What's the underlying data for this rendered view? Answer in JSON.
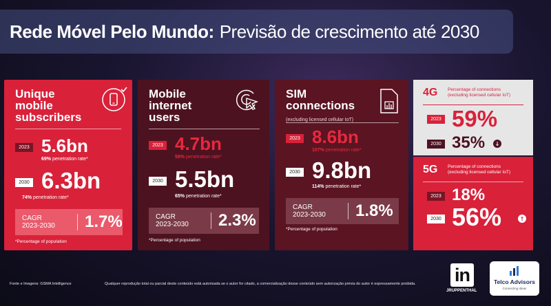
{
  "title": {
    "bold": "Rede Móvel Pelo Mundo:",
    "regular": "Previsão de crescimento até 2030"
  },
  "cards": [
    {
      "head": [
        "Unique",
        "mobile",
        "subscribers"
      ],
      "icon": "smartphone-check-icon",
      "y1": "2023",
      "v1": "5.6bn",
      "r1b": "69%",
      "r1": "penetration rate*",
      "y2": "2030",
      "v2": "6.3bn",
      "r2b": "74%",
      "r2": "penetration rate*",
      "cagr_label1": "CAGR",
      "cagr_label2": "2023-2030",
      "cagr": "1.7%",
      "footnote": "*Percentage of population"
    },
    {
      "head": [
        "Mobile",
        "internet",
        "users"
      ],
      "icon": "cursor-click-icon",
      "y1": "2023",
      "v1": "4.7bn",
      "r1b": "58%",
      "r1": "penetration rate*",
      "y2": "2030",
      "v2": "5.5bn",
      "r2b": "65%",
      "r2": "penetration rate*",
      "cagr_label1": "CAGR",
      "cagr_label2": "2023-2030",
      "cagr": "2.3%",
      "footnote": "*Percentage of population"
    },
    {
      "head": [
        "SIM",
        "connections"
      ],
      "sub": "(excluding licensed cellular IoT)",
      "icon": "sim-card-icon",
      "y1": "2023",
      "v1": "8.6bn",
      "r1b": "107%",
      "r1": "penetration rate*",
      "y2": "2030",
      "v2": "9.8bn",
      "r2b": "114%",
      "r2": "penetration rate*",
      "cagr_label1": "CAGR",
      "cagr_label2": "2023-2030",
      "cagr": "1.8%",
      "footnote": "*Percentage of population"
    }
  ],
  "g4": {
    "label": "4G",
    "sub1": "Percentage of connections",
    "sub2": "(excluding licensed cellular IoT)",
    "y1": "2023",
    "v1": "59%",
    "y2": "2030",
    "v2": "35%",
    "trend": "arrow-down-icon"
  },
  "g5": {
    "label": "5G",
    "sub1": "Percentage of connections",
    "sub2": "(excluding licensed cellular IoT)",
    "y1": "2023",
    "v1": "18%",
    "y2": "2030",
    "v2": "56%",
    "trend": "arrow-up-icon"
  },
  "footer": {
    "source": "Fonte e Imagens: GSMA Intelligence",
    "disclaimer": "Qualquer reprodução total ou parcial deste conteúdo está autorizada se o autor for citado, a comercialização desse conteúdo sem autorização prévia do autor é expressamente proibida.",
    "in_logo": "in",
    "in_name": "JRUPPENTHAL",
    "telco_name": "Telco Advisors",
    "telco_tag": "Connecting ideas"
  }
}
